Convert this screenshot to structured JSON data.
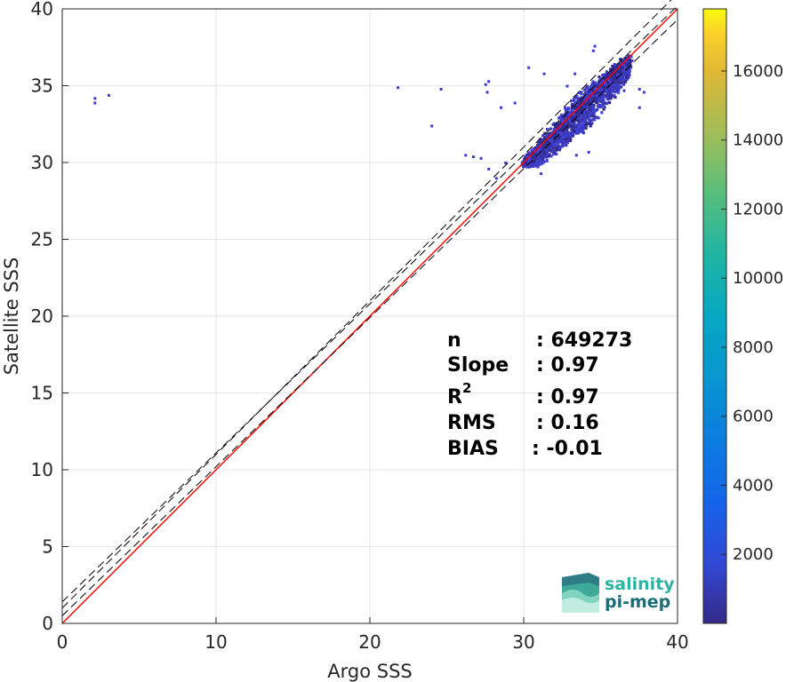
{
  "chart_data": {
    "type": "heatmap",
    "xlabel": "Argo SSS",
    "ylabel": "Satellite SSS",
    "xlim": [
      0,
      40
    ],
    "ylim": [
      0,
      40
    ],
    "xticks": [
      0,
      10,
      20,
      30,
      40
    ],
    "yticks": [
      0,
      5,
      10,
      15,
      20,
      25,
      30,
      35,
      40
    ],
    "grid": true,
    "colormap": "parula",
    "colorbar": {
      "range": [
        0,
        17800
      ],
      "ticks": [
        2000,
        4000,
        6000,
        8000,
        10000,
        12000,
        14000,
        16000
      ],
      "tick_labels": [
        "2000",
        "4000",
        "6000",
        "8000",
        "10000",
        "12000",
        "14000",
        "16000"
      ]
    },
    "lines": [
      {
        "kind": "one-to-one",
        "color": "#ff0000",
        "intercept": 0,
        "slope": 1
      },
      {
        "kind": "dashed",
        "color": "#000000",
        "intercept": 1.0,
        "slope": 1
      },
      {
        "kind": "dashed",
        "color": "#000000",
        "intercept": 0.5,
        "slope": 0.97
      },
      {
        "kind": "dashed",
        "color": "#000000",
        "intercept": 1.4,
        "slope": 0.97
      }
    ],
    "density_core": {
      "x_range": [
        30,
        37
      ],
      "y_range": [
        30,
        37
      ],
      "peak_count": 17800
    },
    "outliers": [
      {
        "x": 2.1,
        "y": 34.2
      },
      {
        "x": 2.1,
        "y": 33.9
      },
      {
        "x": 3.0,
        "y": 34.4
      },
      {
        "x": 21.8,
        "y": 34.9
      },
      {
        "x": 24.6,
        "y": 34.8
      },
      {
        "x": 24.0,
        "y": 32.4
      },
      {
        "x": 27.7,
        "y": 35.3
      },
      {
        "x": 27.6,
        "y": 34.6
      },
      {
        "x": 27.5,
        "y": 35.1
      },
      {
        "x": 27.7,
        "y": 29.6
      },
      {
        "x": 26.2,
        "y": 30.5
      },
      {
        "x": 26.7,
        "y": 30.4
      },
      {
        "x": 27.2,
        "y": 30.3
      },
      {
        "x": 28.5,
        "y": 33.6
      },
      {
        "x": 29.4,
        "y": 33.9
      },
      {
        "x": 30.3,
        "y": 36.2
      },
      {
        "x": 31.3,
        "y": 35.8
      },
      {
        "x": 32.8,
        "y": 35.0
      },
      {
        "x": 33.4,
        "y": 30.5
      },
      {
        "x": 31.1,
        "y": 29.3
      },
      {
        "x": 36.5,
        "y": 34.7
      },
      {
        "x": 37.5,
        "y": 34.8
      },
      {
        "x": 37.8,
        "y": 34.6
      },
      {
        "x": 37.5,
        "y": 33.6
      },
      {
        "x": 34.6,
        "y": 37.6
      },
      {
        "x": 34.5,
        "y": 37.3
      },
      {
        "x": 33.3,
        "y": 35.8
      },
      {
        "x": 34.2,
        "y": 30.7
      },
      {
        "x": 28.2,
        "y": 29.0
      },
      {
        "x": 28.8,
        "y": 30.0
      }
    ]
  },
  "stats": {
    "n_label": "n",
    "n_value": ": 649273",
    "slope_label": "Slope",
    "slope_value": ": 0.97",
    "r2_label": "R",
    "r2_sup": "2",
    "r2_value": ": 0.97",
    "rms_label": "RMS",
    "rms_value": ": 0.16",
    "bias_label": "BIAS",
    "bias_value": ": -0.01"
  },
  "logo": {
    "line1": "salinity",
    "line2": "pi-mep"
  }
}
